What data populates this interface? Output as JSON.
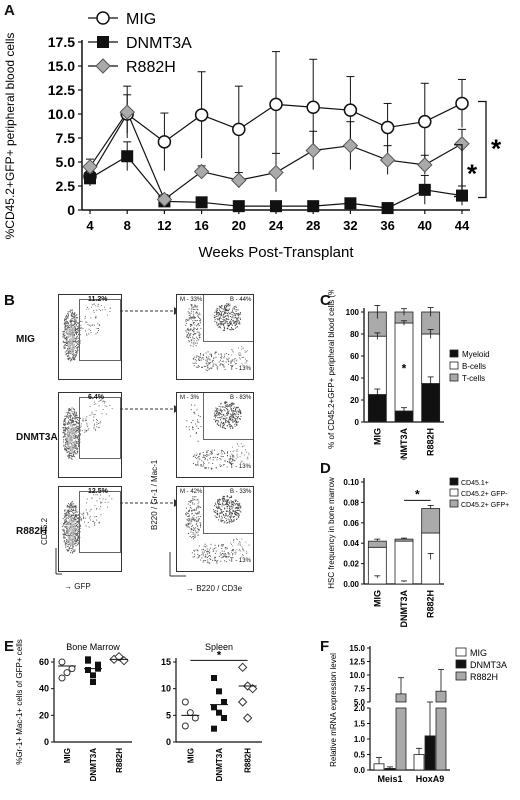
{
  "panels": {
    "a": "A",
    "b": "B",
    "c": "C",
    "d": "D",
    "e": "E",
    "f": "F"
  },
  "chart_data": [
    {
      "id": "A",
      "type": "line",
      "xlabel": "Weeks Post-Transplant",
      "ylabel": "%CD45.2+GFP+ peripheral blood cells",
      "x": [
        4,
        8,
        12,
        16,
        20,
        24,
        28,
        32,
        36,
        40,
        44
      ],
      "ylim": [
        0,
        17.5
      ],
      "yticks": [
        "0",
        "2.5",
        "5.0",
        "7.5",
        "10.0",
        "12.5",
        "15.0",
        "17.5"
      ],
      "series": [
        {
          "name": "MIG",
          "marker": "open-circle",
          "values": [
            3.5,
            10.0,
            7.1,
            9.9,
            8.4,
            11.0,
            10.7,
            10.4,
            8.6,
            9.2,
            11.1
          ],
          "err": [
            1.0,
            2.0,
            3.0,
            4.5,
            4.5,
            5.5,
            5.0,
            3.5,
            2.5,
            4.0,
            2.5
          ]
        },
        {
          "name": "DNMT3A",
          "marker": "filled-square",
          "values": [
            3.3,
            5.6,
            0.9,
            0.8,
            0.4,
            0.4,
            0.4,
            0.7,
            0.2,
            2.1,
            1.5
          ],
          "err": [
            0.8,
            1.5,
            0.5,
            0.3,
            0.3,
            0.2,
            0.2,
            0.3,
            0.1,
            1.5,
            1.0
          ]
        },
        {
          "name": "R882H",
          "marker": "gray-diamond",
          "values": [
            4.5,
            10.2,
            1.1,
            4.0,
            3.1,
            3.9,
            6.2,
            6.7,
            5.2,
            4.7,
            6.9
          ],
          "err": [
            0.8,
            2.7,
            0.5,
            0.6,
            0.8,
            2.0,
            2.0,
            2.5,
            1.5,
            1.0,
            1.5
          ]
        }
      ],
      "significance": [
        "*",
        "*"
      ]
    },
    {
      "id": "C",
      "type": "bar",
      "stacked": true,
      "ylabel": "% of CD45.2+GFP+ peripheral blood cells (%)",
      "ylim": [
        0,
        100
      ],
      "yticks": [
        "0",
        "20",
        "40",
        "60",
        "80",
        "100"
      ],
      "categories": [
        "MIG",
        "DNMT3A",
        "R882H"
      ],
      "series": [
        {
          "name": "Myeloid",
          "values": [
            25,
            10,
            35
          ]
        },
        {
          "name": "B-cells",
          "values": [
            53,
            80,
            45
          ]
        },
        {
          "name": "T-cells",
          "values": [
            22,
            10,
            20
          ]
        }
      ],
      "significance": [
        "*"
      ]
    },
    {
      "id": "D",
      "type": "bar",
      "stacked": true,
      "ylabel": "HSC frequency in bone marrow",
      "ylim": [
        0,
        0.1
      ],
      "yticks": [
        "0.00",
        "0.02",
        "0.04",
        "0.06",
        "0.08",
        "0.10"
      ],
      "categories": [
        "MIG",
        "DNMT3A",
        "R882H"
      ],
      "series": [
        {
          "name": "CD45.1+",
          "values": [
            0.0,
            0.0,
            0.0
          ]
        },
        {
          "name": "CD45.2+ GFP-",
          "values": [
            0.036,
            0.042,
            0.05
          ]
        },
        {
          "name": "CD45.2+ GFP+",
          "values": [
            0.006,
            0.002,
            0.024
          ]
        }
      ],
      "significance": [
        "*"
      ]
    },
    {
      "id": "E-bm",
      "type": "scatter",
      "title": "Bone Marrow",
      "ylabel": "%Gr-1+ Mac-1+ cells of GFP+ cells",
      "ylim": [
        0,
        60
      ],
      "yticks": [
        "0",
        "20",
        "40",
        "60"
      ],
      "categories": [
        "MIG",
        "DNMT3A",
        "R882H"
      ],
      "points": [
        [
          60,
          52,
          55,
          48
        ],
        [
          62,
          50,
          58,
          54,
          45,
          55,
          61
        ],
        [
          62,
          64,
          61
        ]
      ],
      "medians": [
        57,
        55,
        62
      ]
    },
    {
      "id": "E-sp",
      "type": "scatter",
      "title": "Spleen",
      "ylim": [
        0,
        15
      ],
      "yticks": [
        "0",
        "5",
        "10",
        "15"
      ],
      "categories": [
        "MIG",
        "DNMT3A",
        "R882H"
      ],
      "points": [
        [
          7.5,
          5.5,
          4.5,
          3.0
        ],
        [
          12.0,
          9.5,
          7.5,
          6.5,
          5.5,
          4.5,
          2.5
        ],
        [
          14.0,
          10.5,
          10.0,
          7.5,
          4.5
        ]
      ],
      "medians": [
        5.0,
        7.0,
        10.5
      ],
      "significance": [
        "*"
      ]
    },
    {
      "id": "F",
      "type": "bar",
      "ylabel": "Relative mRNA expression level",
      "yticks_upper": [
        "5.0",
        "7.5",
        "10.0",
        "12.5",
        "15.0"
      ],
      "yticks_lower": [
        "0.0",
        "0.5",
        "1.0",
        "1.5",
        "2.0"
      ],
      "categories": [
        "Meis1",
        "HoxA9"
      ],
      "series": [
        {
          "name": "MIG",
          "values": [
            0.2,
            0.5
          ],
          "err": [
            0.2,
            0.2
          ]
        },
        {
          "name": "DNMT3A",
          "values": [
            0.05,
            1.1
          ],
          "err": [
            0.05,
            1.0
          ]
        },
        {
          "name": "R882H",
          "values": [
            6.5,
            7.0
          ],
          "err": [
            3.0,
            4.0
          ]
        }
      ]
    }
  ],
  "facs": {
    "rows": [
      "MIG",
      "DNMT3A",
      "R882H"
    ],
    "gfp_pct": [
      "11.2%",
      "6.4%",
      "12.5%"
    ],
    "m_pct": [
      "M - 33%",
      "M - 3%",
      "M - 42%"
    ],
    "b_pct": [
      "B - 44%",
      "B - 83%",
      "B - 33%"
    ],
    "t_pct": [
      "T - 13%",
      "T - 13%",
      "T - 13%"
    ],
    "x_left": "GFP",
    "y_left": "CD45.2",
    "x_right": "B220 / CD3e",
    "y_right": "B220 / Gr-1 / Mac-1"
  }
}
